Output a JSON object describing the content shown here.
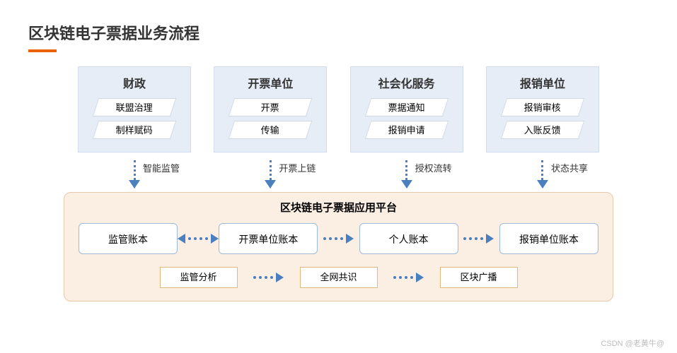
{
  "title": "区块链电子票据业务流程",
  "colors": {
    "accent_orange": "#eb6100",
    "col_bg": "#e6edf7",
    "col_border": "#d0dceb",
    "arrow_blue": "#4a7fc0",
    "platform_bg": "#fbeee3",
    "platform_border": "#e8c9ab",
    "ledger_border": "#9db9dc",
    "proc_border": "#e0b97a",
    "text": "#333333"
  },
  "columns": [
    {
      "title": "财政",
      "items": [
        "联盟治理",
        "制样赋码"
      ],
      "arrow_label": "智能监管"
    },
    {
      "title": "开票单位",
      "items": [
        "开票",
        "传输"
      ],
      "arrow_label": "开票上链"
    },
    {
      "title": "社会化服务",
      "items": [
        "票据通知",
        "报销申请"
      ],
      "arrow_label": "授权流转"
    },
    {
      "title": "报销单位",
      "items": [
        "报销审核",
        "入账反馈"
      ],
      "arrow_label": "状态共享"
    }
  ],
  "platform": {
    "title": "区块链电子票据应用平台",
    "ledgers": [
      "监管账本",
      "开票单位账本",
      "个人账本",
      "报销单位账本"
    ],
    "ledger_connectors": [
      "bi",
      "right",
      "right"
    ],
    "processes": [
      "监管分析",
      "全网共识",
      "区块广播"
    ]
  },
  "watermark": "CSDN @老黄牛@"
}
